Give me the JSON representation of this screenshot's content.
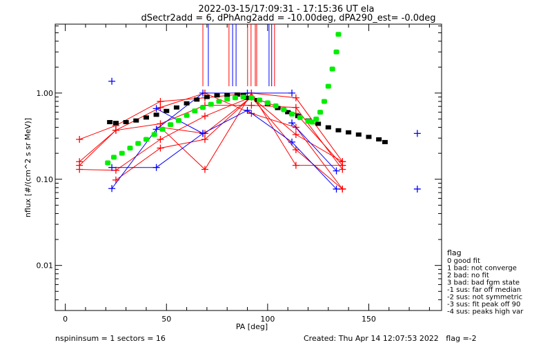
{
  "chart_data": {
    "type": "scatter",
    "title": "2022-03-15/17:09:31 - 17:15:36 UT ela",
    "subtitle": "dSectr2add = 6, dPhAng2add = -10.00deg, dPA290_est=  -0.0deg",
    "xlabel": "PA [deg]",
    "ylabel": "nflux [#/(cm^2 s sr MeV)]",
    "xlim": [
      -5,
      186
    ],
    "ylim": [
      0.003,
      6.3
    ],
    "yscale": "log",
    "xticks": [
      0,
      50,
      100,
      150
    ],
    "xtick_labels": [
      "0",
      "50",
      "100",
      "150"
    ],
    "yticks": [
      0.01,
      0.1,
      1.0
    ],
    "ytick_labels": [
      "0.01",
      "0.10",
      "1.00"
    ],
    "colors": {
      "red": "#ff0000",
      "blue": "#0000ff",
      "black": "#000000",
      "green": "#00ee00"
    },
    "red_series": [
      [
        [
          7,
          0.29
        ],
        [
          25,
          0.42
        ],
        [
          47,
          0.8
        ],
        [
          69,
          0.88
        ],
        [
          92,
          1.0
        ],
        [
          114,
          0.88
        ],
        [
          137,
          0.16
        ]
      ],
      [
        [
          7,
          0.16
        ],
        [
          25,
          0.37
        ],
        [
          47,
          0.44
        ],
        [
          69,
          0.72
        ],
        [
          92,
          0.72
        ],
        [
          114,
          0.68
        ],
        [
          137,
          0.13
        ]
      ],
      [
        [
          7,
          0.145
        ],
        [
          25,
          0.37
        ],
        [
          47,
          0.68
        ],
        [
          69,
          1.0
        ],
        [
          92,
          0.58
        ],
        [
          114,
          0.4
        ],
        [
          137,
          0.077
        ]
      ],
      [
        [
          7,
          0.13
        ],
        [
          25,
          0.127
        ],
        [
          47,
          0.29
        ],
        [
          69,
          0.54
        ],
        [
          92,
          0.9
        ],
        [
          114,
          0.58
        ],
        [
          137,
          0.145
        ]
      ],
      [
        [
          25,
          0.098
        ],
        [
          47,
          0.23
        ],
        [
          69,
          0.29
        ],
        [
          92,
          0.9
        ],
        [
          114,
          0.33
        ],
        [
          137,
          0.16
        ]
      ],
      [
        [
          47,
          0.4
        ],
        [
          69,
          0.13
        ],
        [
          92,
          1.0
        ],
        [
          114,
          0.145
        ],
        [
          137,
          0.145
        ]
      ],
      [
        [
          47,
          0.4
        ],
        [
          69,
          0.34
        ],
        [
          92,
          0.9
        ],
        [
          114,
          0.22
        ],
        [
          137,
          0.077
        ]
      ]
    ],
    "blue_series": [
      [
        [
          23,
          0.078
        ],
        [
          45,
          0.38
        ],
        [
          68,
          1.0
        ],
        [
          90,
          1.0
        ],
        [
          112,
          1.0
        ]
      ],
      [
        [
          23,
          0.137
        ],
        [
          45,
          0.137
        ],
        [
          68,
          0.34
        ],
        [
          90,
          0.63
        ],
        [
          112,
          0.27
        ],
        [
          134,
          0.077
        ]
      ],
      [
        [
          45,
          0.66
        ],
        [
          68,
          0.34
        ]
      ],
      [
        [
          23,
          1.37
        ]
      ],
      [
        [
          112,
          0.45
        ],
        [
          134,
          0.125
        ]
      ],
      [
        [
          174,
          0.34
        ]
      ],
      [
        [
          174,
          0.077
        ]
      ]
    ],
    "red_peak_lines_deg": [
      68.0,
      80.9,
      90.1,
      91.8,
      93.9,
      94.6,
      103.4
    ],
    "blue_peak_lines_deg": [
      70.7,
      82.7,
      84.4,
      100.7,
      102.0
    ],
    "peak_line_range": [
      1.2,
      6.3
    ],
    "black_fit": [
      [
        22,
        0.46
      ],
      [
        25,
        0.45
      ],
      [
        30,
        0.46
      ],
      [
        35,
        0.48
      ],
      [
        40,
        0.52
      ],
      [
        45,
        0.56
      ],
      [
        50,
        0.62
      ],
      [
        55,
        0.68
      ],
      [
        60,
        0.76
      ],
      [
        65,
        0.84
      ],
      [
        70,
        0.9
      ],
      [
        75,
        0.94
      ],
      [
        80,
        0.95
      ],
      [
        85,
        0.96
      ],
      [
        88,
        0.95
      ],
      [
        90,
        0.88
      ],
      [
        95,
        0.83
      ],
      [
        100,
        0.75
      ],
      [
        105,
        0.67
      ],
      [
        110,
        0.6
      ],
      [
        115,
        0.54
      ],
      [
        120,
        0.48
      ],
      [
        125,
        0.44
      ],
      [
        130,
        0.4
      ],
      [
        135,
        0.37
      ],
      [
        140,
        0.35
      ],
      [
        145,
        0.33
      ],
      [
        150,
        0.31
      ],
      [
        155,
        0.29
      ],
      [
        158,
        0.27
      ]
    ],
    "green_fit": [
      [
        21,
        0.155
      ],
      [
        24,
        0.18
      ],
      [
        28,
        0.2
      ],
      [
        32,
        0.23
      ],
      [
        36,
        0.26
      ],
      [
        40,
        0.29
      ],
      [
        44,
        0.33
      ],
      [
        48,
        0.38
      ],
      [
        52,
        0.43
      ],
      [
        56,
        0.48
      ],
      [
        60,
        0.55
      ],
      [
        64,
        0.62
      ],
      [
        68,
        0.68
      ],
      [
        72,
        0.74
      ],
      [
        76,
        0.8
      ],
      [
        80,
        0.85
      ],
      [
        84,
        0.88
      ],
      [
        88,
        0.9
      ],
      [
        92,
        0.88
      ],
      [
        96,
        0.83
      ],
      [
        100,
        0.77
      ],
      [
        104,
        0.71
      ],
      [
        108,
        0.64
      ],
      [
        112,
        0.57
      ],
      [
        116,
        0.52
      ],
      [
        120,
        0.47
      ],
      [
        122,
        0.46
      ],
      [
        124,
        0.5
      ],
      [
        126,
        0.6
      ],
      [
        128,
        0.8
      ],
      [
        130,
        1.2
      ],
      [
        132,
        1.9
      ],
      [
        134,
        3.0
      ],
      [
        135,
        4.8
      ]
    ],
    "legend": {
      "title": "flag",
      "entries": [
        " 0 good fit",
        " 1 bad: not converge",
        " 2 bad: no fit",
        " 3 bad: bad fgm state",
        "-1 sus: far off median",
        "-2 sus: not symmetric",
        "-3 sus: fit peak off 90",
        "-4 sus: peaks high var"
      ]
    },
    "footer_left": "nspininsum =  1  sectors = 16",
    "footer_right": "Created: Thu Apr 14 12:07:53 2022   flag =-2"
  }
}
